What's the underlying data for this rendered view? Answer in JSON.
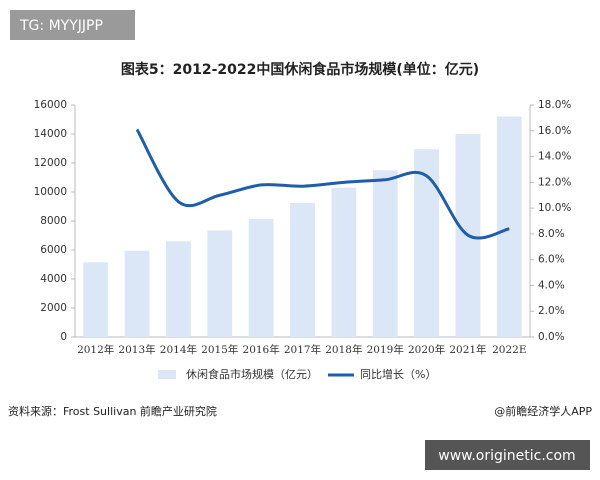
{
  "watermark": "TG: MYYJJPP",
  "chart_data": {
    "type": "bar-line",
    "title": "图表5：2012-2022中国休闲食品市场规模(单位：亿元)",
    "categories": [
      "2012年",
      "2013年",
      "2014年",
      "2015年",
      "2016年",
      "2017年",
      "2018年",
      "2019年",
      "2020年",
      "2021年",
      "2022E"
    ],
    "series": [
      {
        "name": "休闲食品市场规模（亿元）",
        "type": "bar",
        "color": "#dbe7f7",
        "values": [
          5150,
          5950,
          6600,
          7350,
          8150,
          9250,
          10300,
          11500,
          12950,
          14000,
          15200
        ]
      },
      {
        "name": "同比增长（%）",
        "type": "line",
        "color": "#1f5ea8",
        "axis": "y2",
        "values": [
          null,
          16.1,
          10.5,
          11.0,
          11.8,
          11.7,
          12.0,
          12.2,
          12.5,
          7.9,
          8.4
        ]
      }
    ],
    "ylim": [
      0,
      16000
    ],
    "yticks": [
      0,
      2000,
      4000,
      6000,
      8000,
      10000,
      12000,
      14000,
      16000
    ],
    "y2lim": [
      0,
      18
    ],
    "y2ticks": [
      {
        "value": 0,
        "label": "0.0%"
      },
      {
        "value": 2,
        "label": "2.0%"
      },
      {
        "value": 4,
        "label": "4.0%"
      },
      {
        "value": 6,
        "label": "6.0%"
      },
      {
        "value": 8,
        "label": "8.0%"
      },
      {
        "value": 10,
        "label": "10.0%"
      },
      {
        "value": 12,
        "label": "12.0%"
      },
      {
        "value": 14,
        "label": "14.0%"
      },
      {
        "value": 16,
        "label": "16.0%"
      },
      {
        "value": 18,
        "label": "18.0%"
      }
    ],
    "source": "资料来源：Frost Sullivan 前瞻产业研究院",
    "credit": "@前瞻经济学人APP"
  },
  "site": "www.originetic.com"
}
